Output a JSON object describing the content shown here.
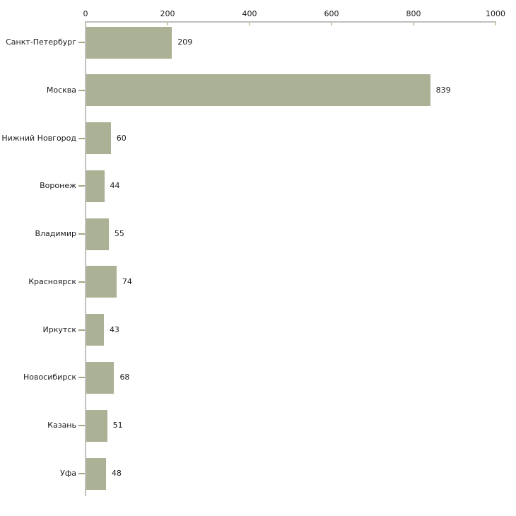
{
  "chart_data": {
    "type": "bar",
    "orientation": "horizontal",
    "title": "",
    "xlabel": "",
    "ylabel": "",
    "categories": [
      "Санкт-Петербург",
      "Москва",
      "Нижний Новгород",
      "Воронеж",
      "Владимир",
      "Красноярск",
      "Иркутск",
      "Новосибирск",
      "Казань",
      "Уфа"
    ],
    "values": [
      209,
      839,
      60,
      44,
      55,
      74,
      43,
      68,
      51,
      48
    ],
    "value_labels": [
      "209",
      "839",
      "60",
      "44",
      "55",
      "74",
      "43",
      "68",
      "51",
      "48"
    ],
    "x_ticks": [
      "0",
      "200",
      "400",
      "600",
      "800",
      "1000"
    ],
    "x_tick_values": [
      0,
      200,
      400,
      600,
      800,
      1000
    ],
    "xlim": [
      0,
      1000
    ],
    "grid": false,
    "legend_position": "none",
    "axis_position": "top-left",
    "colors": {
      "bar": "#abb194",
      "axis_line": "#c0c0c0",
      "x_tick": "#c9c9a0",
      "category_tick": "#a6a687",
      "text": "#1b1b1b",
      "background": "#ffffff"
    }
  }
}
